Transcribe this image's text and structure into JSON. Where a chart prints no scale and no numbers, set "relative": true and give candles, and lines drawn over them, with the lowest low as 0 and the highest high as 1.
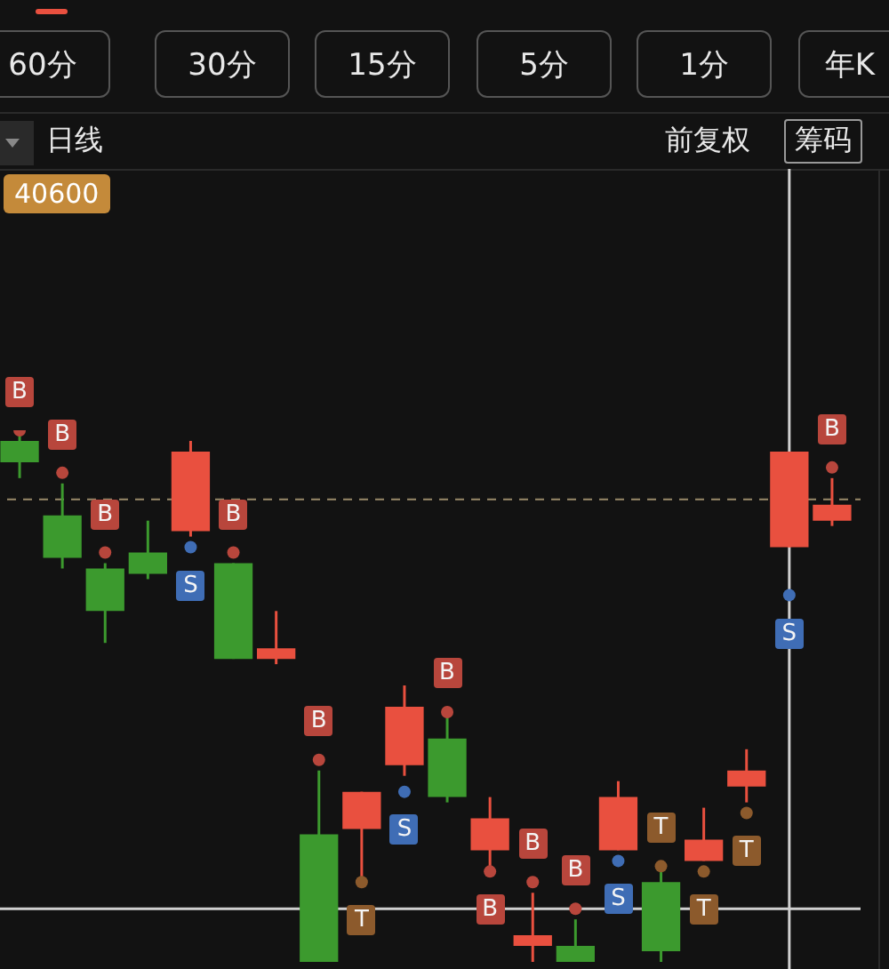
{
  "chart_data": {
    "type": "candlestick",
    "relative": true,
    "marker": "circle",
    "categories": [
      null,
      null,
      null,
      null,
      null,
      null,
      null,
      null,
      null,
      null,
      null,
      null,
      null,
      null,
      null,
      null,
      null,
      null,
      null,
      null
    ],
    "ohlc": [
      [
        0.98,
        1,
        0.91,
        0.94
      ],
      [
        0.84,
        0.9,
        0.74,
        0.76
      ],
      [
        0.74,
        0.75,
        0.6,
        0.66
      ],
      [
        0.77,
        0.83,
        0.72,
        0.73
      ],
      [
        0.81,
        0.98,
        0.8,
        0.96
      ],
      [
        0.75,
        0.75,
        0.57,
        0.57
      ],
      [
        0.57,
        0.66,
        0.56,
        0.59
      ],
      [
        0.24,
        0.36,
        0,
        0
      ],
      [
        0.25,
        0.32,
        0.15,
        0.32
      ],
      [
        0.37,
        0.52,
        0.35,
        0.48
      ],
      [
        0.42,
        0.46,
        0.3,
        0.31
      ],
      [
        0.21,
        0.31,
        0.18,
        0.27
      ],
      [
        0.03,
        0.13,
        0,
        0.05
      ],
      [
        0.03,
        0.08,
        0,
        0
      ],
      [
        0.21,
        0.34,
        0.21,
        0.31
      ],
      [
        0.15,
        0.17,
        0,
        0.02
      ],
      [
        0.19,
        0.29,
        0.19,
        0.23
      ],
      [
        0.33,
        0.4,
        0.3,
        0.36
      ],
      [
        0.78,
        0.96,
        0.78,
        0.96
      ],
      [
        0.83,
        0.91,
        0.82,
        0.86
      ]
    ],
    "colors": [
      "#3c9a2e",
      "#3c9a2e",
      "#3c9a2e",
      "#3c9a2e",
      "#e9503f",
      "#3c9a2e",
      "#e9503f",
      "#3c9a2e",
      "#e9503f",
      "#e9503f",
      "#3c9a2e",
      "#e9503f",
      "#e9503f",
      "#3c9a2e",
      "#e9503f",
      "#3c9a2e",
      "#e9503f",
      "#e9503f",
      "#e9503f",
      "#e9503f"
    ],
    "series": [
      {
        "name": "B",
        "type": "scatter",
        "color": "#b8463c",
        "values": [
          1,
          0.92,
          0.77,
          null,
          null,
          0.77,
          null,
          0.38,
          null,
          null,
          0.47,
          0.17,
          0.15,
          0.1,
          null,
          null,
          null,
          null,
          null,
          0.93
        ]
      },
      {
        "name": "S",
        "type": "scatter",
        "color": "#3f6db5",
        "values": [
          null,
          null,
          null,
          null,
          0.78,
          null,
          null,
          null,
          null,
          0.32,
          null,
          null,
          null,
          null,
          0.19,
          null,
          null,
          null,
          0.69,
          null
        ]
      },
      {
        "name": "T",
        "type": "scatter",
        "color": "#8c5a2c",
        "values": [
          null,
          null,
          null,
          null,
          null,
          null,
          null,
          null,
          0.15,
          null,
          null,
          null,
          null,
          null,
          null,
          0.18,
          0.17,
          0.28,
          null,
          null
        ]
      }
    ],
    "ref_lines": [
      {
        "axis": "y",
        "value": 0.87,
        "line_style": "dashed",
        "color": "#9a8a6a"
      },
      {
        "axis": "y",
        "value": 0.1,
        "line_style": "solid",
        "color": "#d0d0d0"
      }
    ],
    "annotations": [
      "60分",
      "30分",
      "15分",
      "5分",
      "1分",
      "年K",
      "日线",
      "前复权",
      "筹码",
      "40600"
    ]
  }
}
